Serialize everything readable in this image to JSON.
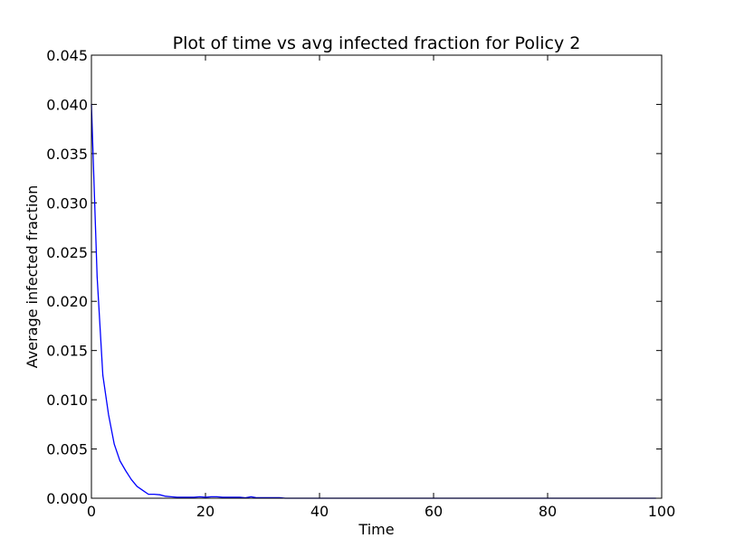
{
  "chart_data": {
    "type": "line",
    "title": "Plot of time vs avg infected fraction for Policy 2",
    "xlabel": "Time",
    "ylabel": "Average infected fraction",
    "xlim": [
      0,
      100
    ],
    "ylim": [
      0,
      0.045
    ],
    "xticks": [
      0,
      20,
      40,
      60,
      80,
      100
    ],
    "xtick_labels": [
      "0",
      "20",
      "40",
      "60",
      "80",
      "100"
    ],
    "yticks": [
      0,
      0.005,
      0.01,
      0.015,
      0.02,
      0.025,
      0.03,
      0.035,
      0.04,
      0.045
    ],
    "ytick_labels": [
      "0.000",
      "0.005",
      "0.010",
      "0.015",
      "0.020",
      "0.025",
      "0.030",
      "0.035",
      "0.040",
      "0.045"
    ],
    "grid": false,
    "legend": "none",
    "series": [
      {
        "color": "#0000ff",
        "x": [
          0,
          1,
          2,
          3,
          4,
          5,
          6,
          7,
          8,
          9,
          10,
          11,
          12,
          13,
          14,
          15,
          16,
          17,
          18,
          19,
          20,
          21,
          22,
          23,
          24,
          25,
          26,
          27,
          28,
          29,
          30,
          31,
          32,
          33,
          34,
          35,
          40,
          50,
          60,
          70,
          80,
          90,
          99
        ],
        "y": [
          0.04,
          0.0225,
          0.0125,
          0.0085,
          0.0055,
          0.0038,
          0.0028,
          0.0019,
          0.0012,
          0.0008,
          0.0004,
          0.0004,
          0.00035,
          0.0002,
          0.00015,
          0.0001,
          0.0001,
          0.0001,
          0.0001,
          0.00015,
          0.0001,
          0.00015,
          0.00015,
          0.0001,
          0.0001,
          0.0001,
          0.0001,
          5e-05,
          0.00015,
          5e-05,
          5e-05,
          5e-05,
          5e-05,
          5e-05,
          0.0,
          0.0,
          0.0,
          0.0,
          0.0,
          0.0,
          0.0,
          0.0,
          0.0
        ]
      }
    ]
  }
}
